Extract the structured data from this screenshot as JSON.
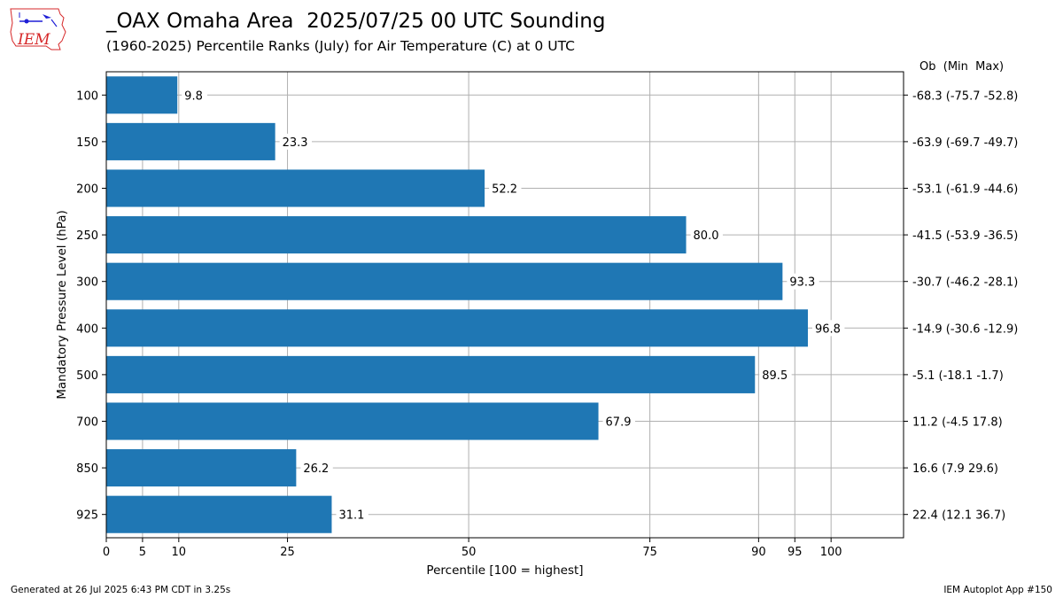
{
  "header": {
    "title": "_OAX Omaha Area  2025/07/25 00 UTC Sounding",
    "subtitle": "(1960-2025) Percentile Ranks (July) for Air Temperature (C) at 0 UTC",
    "right_column_header": "Ob  (Min  Max)",
    "logo_text": "IEM"
  },
  "footer": {
    "left": "Generated at 26 Jul 2025 6:43 PM CDT in 3.25s",
    "right": "IEM Autoplot App #150"
  },
  "colors": {
    "bar": "#1f77b4",
    "grid": "#b0b0b0",
    "logo_red": "#d62728",
    "logo_blue": "#1f1fd6"
  },
  "chart_data": {
    "type": "bar",
    "orientation": "horizontal",
    "xlabel": "Percentile [100 = highest]",
    "ylabel": "Mandatory Pressure Level (hPa)",
    "xlim": [
      0,
      110
    ],
    "xticks": [
      0,
      5,
      10,
      25,
      50,
      75,
      90,
      95,
      100
    ],
    "grid": true,
    "categories": [
      "100",
      "150",
      "200",
      "250",
      "300",
      "400",
      "500",
      "700",
      "850",
      "925"
    ],
    "values": [
      9.8,
      23.3,
      52.2,
      80.0,
      93.3,
      96.8,
      89.5,
      67.9,
      26.2,
      31.1
    ],
    "value_labels": [
      "9.8",
      "23.3",
      "52.2",
      "80.0",
      "93.3",
      "96.8",
      "89.5",
      "67.9",
      "26.2",
      "31.1"
    ],
    "right_labels": [
      "-68.3 (-75.7 -52.8)",
      "-63.9 (-69.7 -49.7)",
      "-53.1 (-61.9 -44.6)",
      "-41.5 (-53.9 -36.5)",
      "-30.7 (-46.2 -28.1)",
      "-14.9 (-30.6 -12.9)",
      "-5.1 (-18.1 -1.7)",
      "11.2 (-4.5 17.8)",
      "16.6 (7.9 29.6)",
      "22.4 (12.1 36.7)"
    ]
  }
}
